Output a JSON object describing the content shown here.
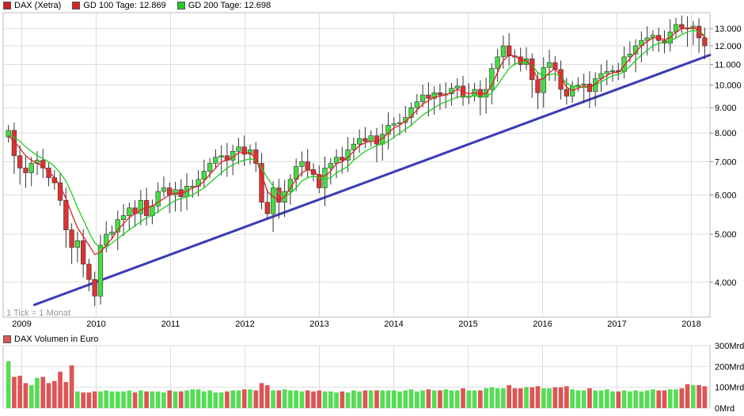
{
  "chart_data": [
    {
      "type": "candlestick",
      "title": "DAX (Xetra)",
      "note": "1 Tick = 1 Monat",
      "scale": "log",
      "ylim": [
        3400,
        14000
      ],
      "x_start": 2008.75,
      "x_end": 2018.25,
      "legend": [
        {
          "name": "DAX (Xetra)",
          "color": "#cc2222"
        },
        {
          "name": "GD 100 Tage: 12.869",
          "color": "#dd2222"
        },
        {
          "name": "GD 200 Tage: 12.698",
          "color": "#22cc22"
        }
      ],
      "x_ticks": [
        {
          "label": "2009",
          "value": 2009
        },
        {
          "label": "2010",
          "value": 2010
        },
        {
          "label": "2011",
          "value": 2011
        },
        {
          "label": "2012",
          "value": 2012
        },
        {
          "label": "2013",
          "value": 2013
        },
        {
          "label": "2014",
          "value": 2014
        },
        {
          "label": "2015",
          "value": 2015
        },
        {
          "label": "2016",
          "value": 2016
        },
        {
          "label": "2017",
          "value": 2017
        },
        {
          "label": "2018",
          "value": 2018
        }
      ],
      "y_ticks": [
        {
          "label": "4.000",
          "value": 4000
        },
        {
          "label": "5.000",
          "value": 5000
        },
        {
          "label": "6.000",
          "value": 6000
        },
        {
          "label": "7.000",
          "value": 7000
        },
        {
          "label": "8.000",
          "value": 8000
        },
        {
          "label": "9.000",
          "value": 9000
        },
        {
          "label": "10.000",
          "value": 10000
        },
        {
          "label": "11.000",
          "value": 11000
        },
        {
          "label": "12.000",
          "value": 12000
        },
        {
          "label": "13.000",
          "value": 13000
        }
      ],
      "closes": [
        8100,
        7200,
        6800,
        6650,
        6950,
        7050,
        6800,
        6500,
        6350,
        5850,
        5100,
        4700,
        4850,
        4350,
        4050,
        3750,
        4750,
        5000,
        5050,
        5350,
        5450,
        5650,
        5500,
        5850,
        5450,
        5700,
        6100,
        6200,
        6000,
        6150,
        5950,
        6250,
        6250,
        6450,
        6700,
        6950,
        7150,
        7200,
        7050,
        7350,
        7500,
        7250,
        7400,
        6950,
        5800,
        5500,
        6200,
        5800,
        6100,
        6450,
        6850,
        7000,
        6750,
        6600,
        6200,
        6800,
        6950,
        7150,
        7050,
        7400,
        7600,
        7800,
        7700,
        7900,
        7600,
        7950,
        8300,
        8350,
        8400,
        8600,
        9000,
        9250,
        9550,
        9400,
        9650,
        9550,
        9600,
        9850,
        9950,
        9450,
        9500,
        9800,
        9450,
        9800,
        10800,
        11400,
        12000,
        11450,
        11400,
        11000,
        11300,
        10250,
        9650,
        10850,
        11100,
        10750,
        9800,
        9500,
        9950,
        10000,
        10050,
        9700,
        10300,
        10550,
        10650,
        10700,
        10650,
        11400,
        11550,
        12000,
        12300,
        12450,
        12600,
        12300,
        12150,
        12800,
        13250,
        13050,
        13000,
        13150,
        12450,
        12000
      ],
      "ma100": [
        7900,
        7700,
        7450,
        7200,
        7050,
        6950,
        6850,
        6700,
        6500,
        6250,
        5900,
        5500,
        5150,
        4950,
        4750,
        4550,
        4600,
        4750,
        4900,
        5100,
        5250,
        5400,
        5500,
        5600,
        5650,
        5700,
        5800,
        5900,
        6000,
        6050,
        6050,
        6100,
        6200,
        6250,
        6400,
        6600,
        6800,
        7000,
        7050,
        7150,
        7300,
        7300,
        7300,
        7100,
        6600,
        6100,
        5950,
        5850,
        5950,
        6200,
        6450,
        6650,
        6750,
        6700,
        6550,
        6550,
        6700,
        6950,
        7000,
        7150,
        7350,
        7550,
        7650,
        7700,
        7700,
        7800,
        8000,
        8200,
        8300,
        8450,
        8650,
        8900,
        9150,
        9300,
        9450,
        9500,
        9550,
        9650,
        9800,
        9700,
        9600,
        9650,
        9600,
        9600,
        10000,
        10600,
        11200,
        11500,
        11450,
        11250,
        11200,
        10900,
        10250,
        10300,
        10600,
        10800,
        10400,
        9900,
        9750,
        9850,
        9950,
        9900,
        10050,
        10300,
        10450,
        10600,
        10600,
        10950,
        11300,
        11650,
        12000,
        12250,
        12450,
        12450,
        12350,
        12450,
        12800,
        13000,
        13000,
        13050,
        12900,
        12450
      ],
      "ma200": [
        7950,
        7850,
        7700,
        7500,
        7350,
        7200,
        7100,
        7000,
        6850,
        6650,
        6400,
        6050,
        5650,
        5350,
        5050,
        4800,
        4700,
        4700,
        4800,
        4900,
        5000,
        5100,
        5200,
        5300,
        5400,
        5450,
        5550,
        5650,
        5750,
        5850,
        5900,
        5950,
        6000,
        6100,
        6200,
        6350,
        6500,
        6650,
        6800,
        6900,
        7000,
        7050,
        7100,
        7050,
        6800,
        6500,
        6250,
        6050,
        5950,
        6050,
        6200,
        6400,
        6500,
        6550,
        6500,
        6450,
        6500,
        6650,
        6750,
        6850,
        7050,
        7200,
        7350,
        7450,
        7550,
        7600,
        7700,
        7850,
        8000,
        8150,
        8300,
        8500,
        8700,
        8850,
        9000,
        9150,
        9250,
        9350,
        9450,
        9500,
        9500,
        9500,
        9500,
        9450,
        9650,
        10000,
        10400,
        10800,
        11050,
        11100,
        11100,
        10950,
        10600,
        10450,
        10500,
        10550,
        10400,
        10100,
        9950,
        9900,
        9900,
        9900,
        10000,
        10150,
        10300,
        10450,
        10500,
        10650,
        10900,
        11200,
        11500,
        11750,
        12000,
        12150,
        12200,
        12250,
        12450,
        12650,
        12800,
        12900,
        12800,
        12600
      ],
      "volumes": [
        225,
        150,
        155,
        120,
        110,
        145,
        150,
        120,
        130,
        175,
        125,
        205,
        80,
        75,
        75,
        80,
        80,
        85,
        80,
        80,
        80,
        85,
        75,
        85,
        80,
        80,
        80,
        75,
        85,
        80,
        80,
        85,
        90,
        90,
        80,
        85,
        75,
        75,
        80,
        85,
        85,
        90,
        90,
        85,
        120,
        110,
        85,
        85,
        90,
        85,
        85,
        80,
        85,
        80,
        85,
        80,
        80,
        75,
        80,
        75,
        85,
        80,
        85,
        85,
        85,
        85,
        85,
        85,
        80,
        85,
        90,
        80,
        85,
        90,
        85,
        85,
        90,
        85,
        85,
        95,
        85,
        85,
        85,
        95,
        100,
        95,
        95,
        110,
        95,
        95,
        100,
        100,
        105,
        95,
        95,
        100,
        100,
        105,
        90,
        85,
        85,
        95,
        85,
        85,
        90,
        80,
        80,
        85,
        80,
        85,
        80,
        85,
        90,
        85,
        85,
        90,
        90,
        95,
        115,
        110,
        110,
        105
      ],
      "trendline": [
        {
          "x": 2009.17,
          "y": 3600
        },
        {
          "x": 2018.25,
          "y": 11500
        }
      ]
    },
    {
      "type": "bar",
      "title": "DAX Volumen in Euro",
      "unit": "Mrd",
      "ylim": [
        0,
        300
      ],
      "y_ticks": [
        {
          "label": "300Mrd",
          "value": 300
        },
        {
          "label": "200Mrd",
          "value": 200
        },
        {
          "label": "100Mrd",
          "value": 100
        },
        {
          "label": "0Mrd",
          "value": 0
        }
      ],
      "up_color": "#55dd55",
      "down_color": "#dd5555"
    }
  ]
}
